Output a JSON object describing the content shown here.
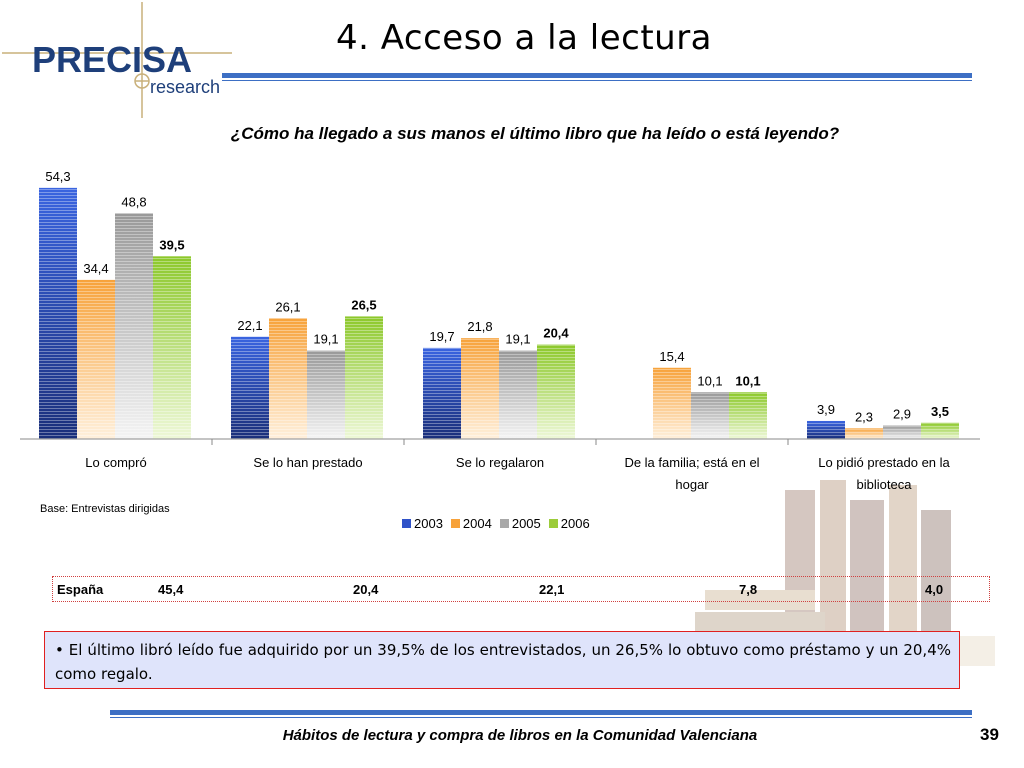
{
  "logo": {
    "brand": "PRECISA",
    "sub": "research"
  },
  "slide_title": "4. Acceso a la lectura",
  "chart_data": {
    "type": "bar",
    "title": "¿Cómo ha llegado a sus manos el último libro que ha leído o está leyendo?",
    "categories": [
      [
        "Lo compró"
      ],
      [
        "Se lo han prestado"
      ],
      [
        "Se lo regalaron"
      ],
      [
        "De la familia; está en el",
        "hogar"
      ],
      [
        "Lo pidió prestado en la",
        "biblioteca"
      ]
    ],
    "series": [
      {
        "name": "2003",
        "values": [
          54.3,
          22.1,
          19.7,
          null,
          3.9
        ],
        "labels": [
          "54,3",
          "22,1",
          "19,7",
          "",
          "3,9"
        ]
      },
      {
        "name": "2004",
        "values": [
          34.4,
          26.1,
          21.8,
          15.4,
          2.3
        ],
        "labels": [
          "34,4",
          "26,1",
          "21,8",
          "15,4",
          "2,3"
        ]
      },
      {
        "name": "2005",
        "values": [
          48.8,
          19.1,
          19.1,
          10.1,
          2.9
        ],
        "labels": [
          "48,8",
          "19,1",
          "19,1",
          "10,1",
          "2,9"
        ]
      },
      {
        "name": "2006",
        "values": [
          39.5,
          26.5,
          20.4,
          10.1,
          3.5
        ],
        "labels": [
          "39,5",
          "26,5",
          "20,4",
          "10,1",
          "3,5"
        ]
      }
    ],
    "bold_series": "2006",
    "ylim": [
      0,
      56
    ],
    "colors": {
      "2003": "#2f52c8",
      "2004": "#f7a23a",
      "2005": "#a8a8a8",
      "2006": "#9ccc3a"
    },
    "legend_position": "bottom"
  },
  "base_note": "Base: Entrevistas dirigidas",
  "spain": {
    "label": "España",
    "values": [
      "45,4",
      "20,4",
      "22,1",
      "7,8",
      "4,0"
    ]
  },
  "summary": "• El último libró leído fue adquirido por un 39,5% de los entrevistados, un 26,5% lo obtuvo como préstamo y un 20,4% como regalo.",
  "footer": "Hábitos de lectura y compra de libros en la Comunidad Valenciana",
  "page_number": "39"
}
